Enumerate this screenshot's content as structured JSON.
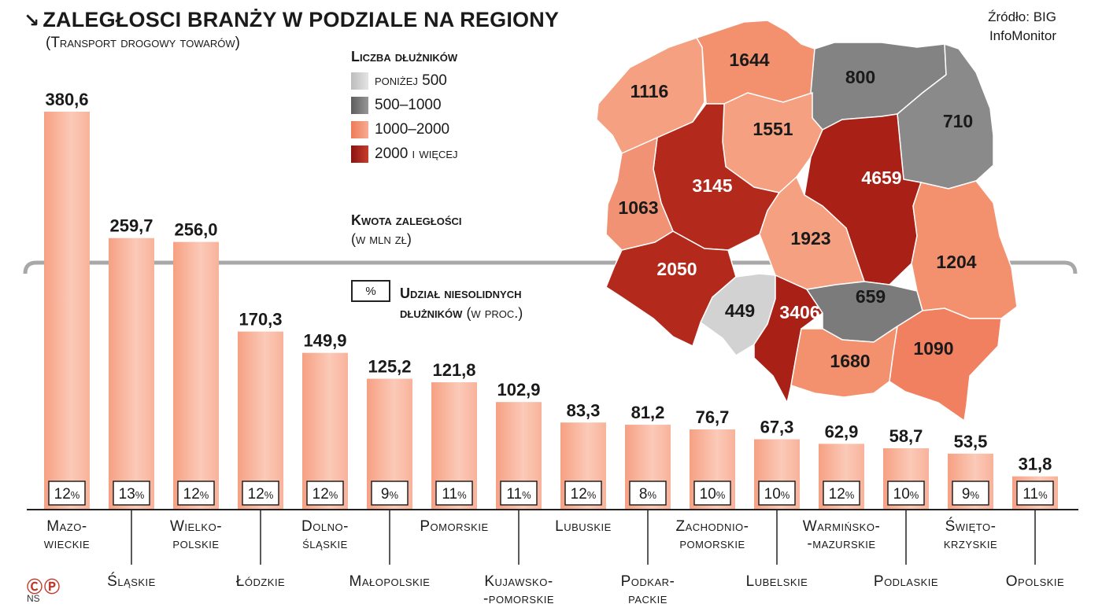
{
  "title": "Zaległosci branży w podziale na regiony",
  "subtitle": "(Transport drogowy towarów)",
  "source_line1": "Źródło: BIG",
  "source_line2": "InfoMonitor",
  "legend": {
    "title": "Liczba dłużników",
    "items": [
      {
        "label": "poniżej 500",
        "color": "#cfcfcf"
      },
      {
        "label": "500–1000",
        "color": "#7b7b7b"
      },
      {
        "label": "1000–2000",
        "color": "#f3916f"
      },
      {
        "label": "2000 i więcej",
        "color": "#a31f16"
      }
    ]
  },
  "amount_legend": {
    "title": "Kwota zaległości",
    "unit": "(w mln zł)"
  },
  "share_legend": {
    "box": "%",
    "title_bold1": "Udział niesolidnych",
    "title_bold2": "dłużników",
    "title_rest": " (w proc.)"
  },
  "footer": {
    "cp": "ⒸⓅ",
    "ns": "NS"
  },
  "chart_data": {
    "type": "bar",
    "categories": [
      "Mazowieckie",
      "Śląskie",
      "Wielkopolskie",
      "Łódzkie",
      "Dolnośląskie",
      "Małopolskie",
      "Pomorskie",
      "Kujawsko-pomorskie",
      "Lubuskie",
      "Podkarpackie",
      "Zachodniopomorskie",
      "Lubelskie",
      "Warmińsko-mazurskie",
      "Podlaskie",
      "Świętokrzyskie",
      "Opolskie"
    ],
    "category_labels": [
      [
        "Mazo-",
        "wieckie"
      ],
      [
        "Śląskie"
      ],
      [
        "Wielko-",
        "polskie"
      ],
      [
        "Łódzkie"
      ],
      [
        "Dolno-",
        "śląskie"
      ],
      [
        "Małopolskie"
      ],
      [
        "Pomorskie"
      ],
      [
        "Kujawsko-",
        "-pomorskie"
      ],
      [
        "Lubuskie"
      ],
      [
        "Podkar-",
        "packie"
      ],
      [
        "Zachodnio-",
        "pomorskie"
      ],
      [
        "Lubelskie"
      ],
      [
        "Warmińsko-",
        "-mazurskie"
      ],
      [
        "Podlaskie"
      ],
      [
        "Święto-",
        "krzyskie"
      ],
      [
        "Opolskie"
      ]
    ],
    "value_labels": [
      "380,6",
      "259,7",
      "256,0",
      "170,3",
      "149,9",
      "125,2",
      "121,8",
      "102,9",
      "83,3",
      "81,2",
      "76,7",
      "67,3",
      "62,9",
      "58,7",
      "53,5",
      "31,8"
    ],
    "values": [
      380.6,
      259.7,
      256.0,
      170.3,
      149.9,
      125.2,
      121.8,
      102.9,
      83.3,
      81.2,
      76.7,
      67.3,
      62.9,
      58.7,
      53.5,
      31.8
    ],
    "share_pct": [
      12,
      13,
      12,
      12,
      12,
      9,
      11,
      11,
      12,
      8,
      10,
      10,
      12,
      10,
      9,
      11
    ],
    "ylim": [
      0,
      400
    ],
    "bar_color": "#f6a68a",
    "map_counts": [
      {
        "region": "Pomorskie",
        "value": "1644",
        "color": "#f3916f"
      },
      {
        "region": "Zachodniopomorskie",
        "value": "1116",
        "color": "#f3916f"
      },
      {
        "region": "Warmińsko-mazurskie",
        "value": "800",
        "color": "#7b7b7b"
      },
      {
        "region": "Podlaskie",
        "value": "710",
        "color": "#7b7b7b"
      },
      {
        "region": "Kujawsko-pomorskie",
        "value": "1551",
        "color": "#f3916f"
      },
      {
        "region": "Wielkopolskie",
        "value": "3145",
        "color": "#a31f16"
      },
      {
        "region": "Mazowieckie",
        "value": "4659",
        "color": "#a31f16"
      },
      {
        "region": "Lubuskie",
        "value": "1063",
        "color": "#f3916f"
      },
      {
        "region": "Łódzkie",
        "value": "1923",
        "color": "#f3916f"
      },
      {
        "region": "Dolnośląskie",
        "value": "2050",
        "color": "#a31f16"
      },
      {
        "region": "Lubelskie",
        "value": "1204",
        "color": "#f3916f"
      },
      {
        "region": "Opolskie",
        "value": "449",
        "color": "#cfcfcf"
      },
      {
        "region": "Śląskie",
        "value": "3406",
        "color": "#a31f16"
      },
      {
        "region": "Świętokrzyskie",
        "value": "659",
        "color": "#7b7b7b"
      },
      {
        "region": "Małopolskie",
        "value": "1680",
        "color": "#f3916f"
      },
      {
        "region": "Podkarpackie",
        "value": "1090",
        "color": "#f3916f"
      }
    ]
  }
}
